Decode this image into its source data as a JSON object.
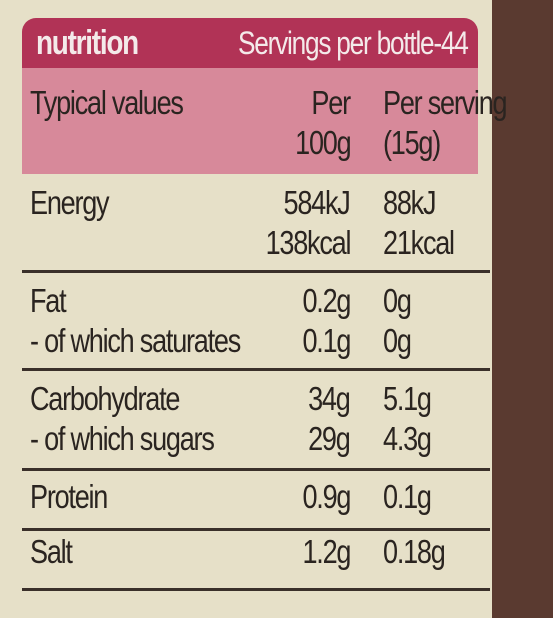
{
  "header": {
    "brand": "nutrition",
    "servings": "Servings per bottle-44"
  },
  "table": {
    "columns": [
      [
        "Typical values"
      ],
      [
        "Per",
        "100g"
      ],
      [
        "Per serving",
        "(15g)"
      ]
    ],
    "rows": [
      [
        [
          "Energy"
        ],
        [
          "584kJ",
          "138kcal"
        ],
        [
          "88kJ",
          "21kcal"
        ]
      ],
      [
        [
          "Fat",
          "- of which saturates"
        ],
        [
          "0.2g",
          "0.1g"
        ],
        [
          "0g",
          "0g"
        ]
      ],
      [
        [
          "Carbohydrate",
          "- of which sugars"
        ],
        [
          "34g",
          "29g"
        ],
        [
          "5.1g",
          "4.3g"
        ]
      ],
      [
        [
          "Protein"
        ],
        [
          "0.9g"
        ],
        [
          "0.1g"
        ]
      ],
      [
        [
          "Salt"
        ],
        [
          "1.2g"
        ],
        [
          "0.18g"
        ]
      ]
    ]
  }
}
